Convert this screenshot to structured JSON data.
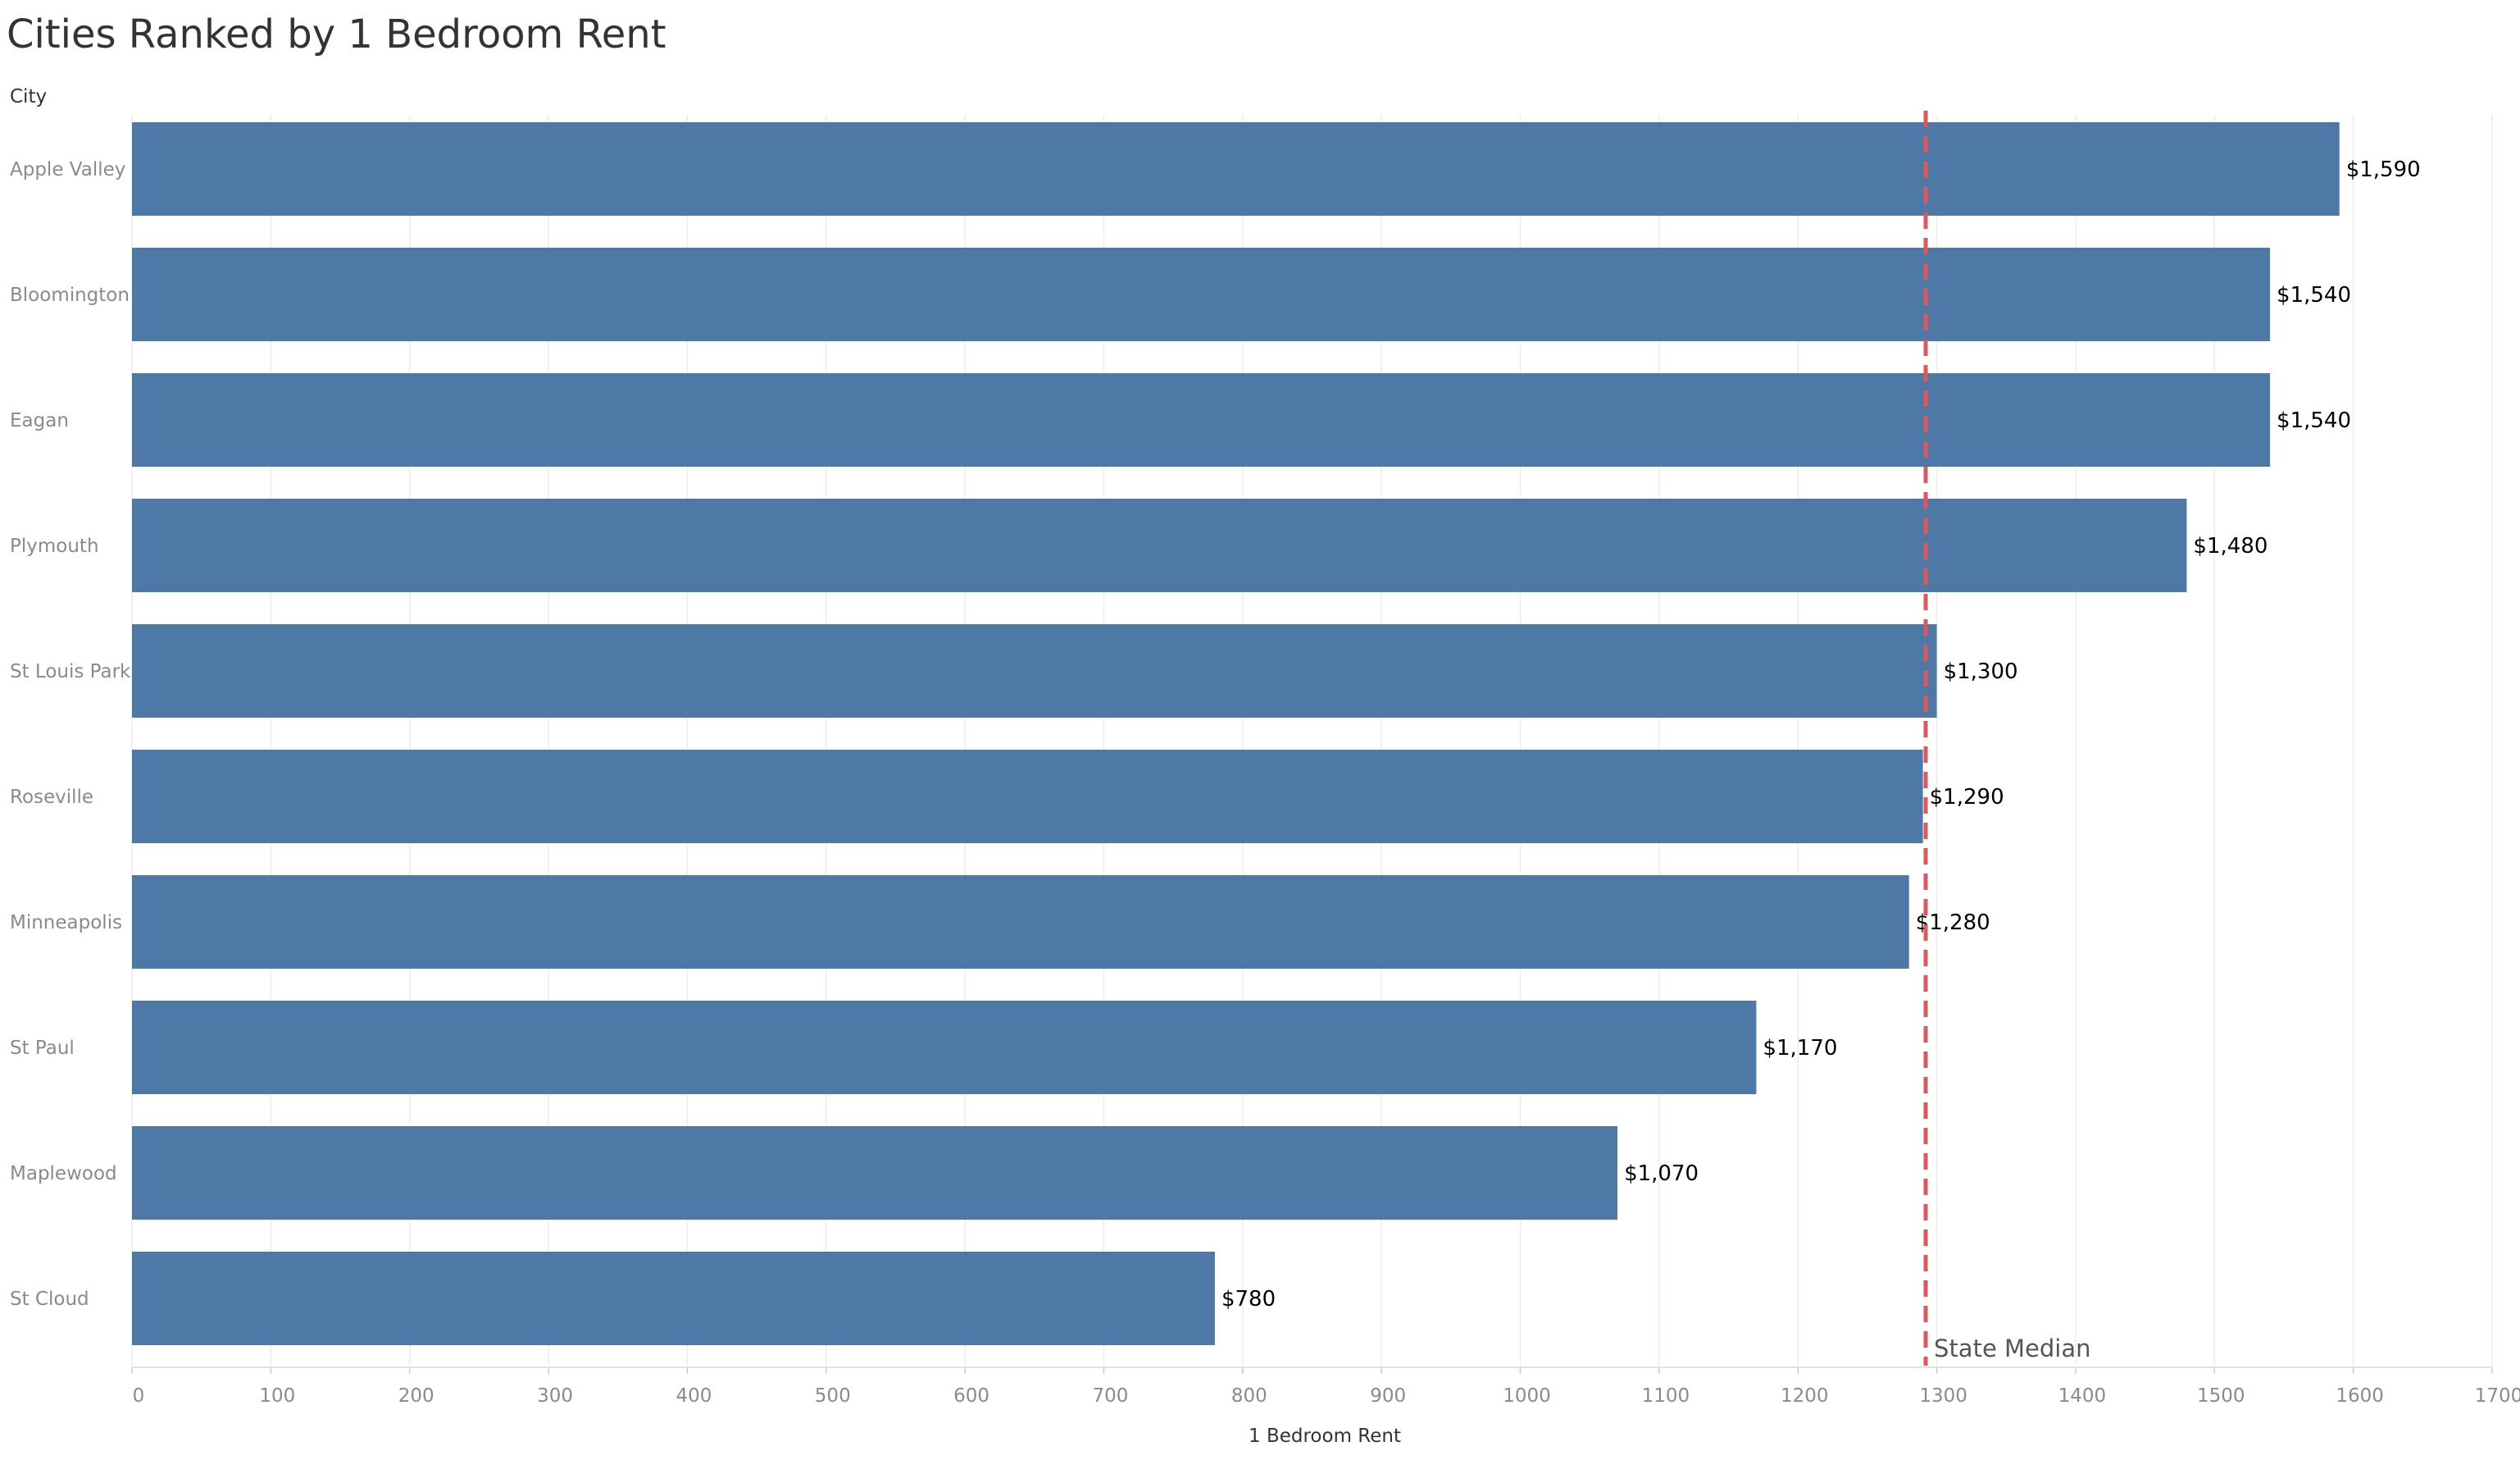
{
  "chart_data": {
    "type": "bar",
    "orientation": "horizontal",
    "title": "Cities Ranked by 1 Bedroom Rent",
    "ylabel": "City",
    "xlabel": "1 Bedroom Rent",
    "categories": [
      "Apple Valley",
      "Bloomington",
      "Eagan",
      "Plymouth",
      "St Louis Park",
      "Roseville",
      "Minneapolis",
      "St Paul",
      "Maplewood",
      "St Cloud"
    ],
    "values": [
      1590,
      1540,
      1540,
      1480,
      1300,
      1290,
      1280,
      1170,
      1070,
      780
    ],
    "value_labels": [
      "$1,590",
      "$1,540",
      "$1,540",
      "$1,480",
      "$1,300",
      "$1,290",
      "$1,280",
      "$1,170",
      "$1,070",
      "$780"
    ],
    "xlim": [
      0,
      1700
    ],
    "xticks": [
      0,
      100,
      200,
      300,
      400,
      500,
      600,
      700,
      800,
      900,
      1000,
      1100,
      1200,
      1300,
      1400,
      1500,
      1600,
      1700
    ],
    "grid": true,
    "reference_line": {
      "label": "State Median",
      "value": 1292,
      "style": "dashed"
    },
    "colors": {
      "bar": "#4e79a7",
      "reference_line": "#e15759",
      "grid": "#ececec"
    }
  }
}
